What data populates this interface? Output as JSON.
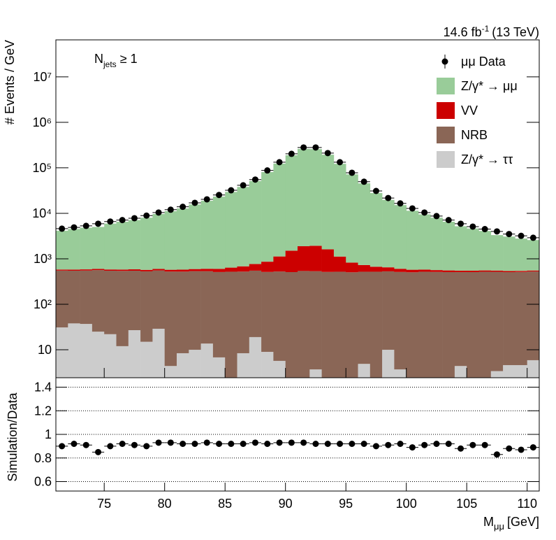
{
  "chart_data": [
    {
      "type": "stacked-histogram",
      "lumi": [
        "14.6 fb",
        "-1",
        "(13 TeV)"
      ],
      "annotation": [
        "N",
        "jets",
        "≥ 1"
      ],
      "ylabel": "# Events / GeV",
      "log_y": true,
      "bins": [
        71,
        72,
        73,
        74,
        75,
        76,
        77,
        78,
        79,
        80,
        81,
        82,
        83,
        84,
        85,
        86,
        87,
        88,
        89,
        90,
        91,
        92,
        93,
        94,
        95,
        96,
        97,
        98,
        99,
        100,
        101,
        102,
        103,
        104,
        105,
        106,
        107,
        108,
        109,
        110,
        111
      ],
      "xlim": [
        71,
        111
      ],
      "ylim": [
        2.43,
        65000000
      ],
      "yticks": [
        10,
        {
          "value": 100,
          "label": "10²"
        },
        {
          "value": 1000,
          "label": "10³"
        },
        {
          "value": 10000,
          "label": "10⁴"
        },
        {
          "value": 100000,
          "label": "10⁵"
        },
        {
          "value": 1000000,
          "label": "10⁶"
        },
        {
          "value": 10000000,
          "label": "10⁷"
        }
      ],
      "data": {
        "name": "μμ Data",
        "color": "#000000",
        "values": [
          4600,
          4900,
          5300,
          5900,
          6600,
          7100,
          7800,
          8900,
          10400,
          12000,
          13900,
          17000,
          20300,
          25300,
          32100,
          41300,
          55200,
          87600,
          133000,
          203000,
          280000,
          280000,
          211000,
          133000,
          78000,
          49500,
          31000,
          21700,
          16500,
          12800,
          10400,
          8700,
          7100,
          5900,
          5100,
          4500,
          4000,
          3500,
          3200,
          2900
        ]
      },
      "series": [
        {
          "name": "Z/γ* → μμ",
          "color": "#99cc99",
          "values": [
            3560,
            3930,
            4240,
            4420,
            5360,
            5950,
            6510,
            7440,
            9070,
            10590,
            12210,
            15050,
            18280,
            22670,
            28890,
            37310,
            50570,
            79730,
            122560,
            187280,
            258510,
            255670,
            192510,
            121240,
            70940,
            44810,
            27230,
            19100,
            14580,
            10820,
            8880,
            7440,
            5980,
            4640,
            4090,
            3540,
            2770,
            2540,
            2240,
            2030
          ]
        },
        {
          "name": "VV",
          "color": "#cc0000",
          "values": [
            30,
            32,
            34,
            35,
            36,
            38,
            40,
            42,
            45,
            50,
            55,
            60,
            70,
            90,
            120,
            160,
            220,
            350,
            600,
            1000,
            1350,
            1400,
            1100,
            600,
            320,
            210,
            150,
            120,
            90,
            70,
            60,
            50,
            45,
            40,
            38,
            35,
            33,
            30,
            28,
            27
          ]
        },
        {
          "name": "NRB",
          "color": "#8a6656",
          "values": [
            520,
            510,
            515,
            540,
            525,
            530,
            520,
            515,
            525,
            520,
            515,
            525,
            520,
            505,
            520,
            515,
            530,
            505,
            520,
            510,
            540,
            530,
            515,
            520,
            505,
            515,
            520,
            520,
            510,
            505,
            520,
            515,
            510,
            505,
            510,
            520,
            515,
            505,
            510,
            520
          ]
        },
        {
          "name": "Z/γ* → ττ",
          "color": "#cccccc",
          "values": [
            31,
            38,
            37,
            25,
            22,
            12,
            27,
            15,
            29,
            4.4,
            8.4,
            10,
            13.7,
            6.8,
            0,
            8.4,
            19,
            9,
            5.7,
            0,
            0,
            3.7,
            0,
            0,
            0,
            4.9,
            0,
            10,
            3.7,
            0,
            0,
            0,
            0,
            4.4,
            0,
            0,
            3.4,
            4.6,
            4.6,
            5.9
          ]
        }
      ]
    },
    {
      "type": "ratio",
      "ylabel": "Simulation/Data",
      "xlabel": [
        "M",
        "μμ",
        "[GeV]"
      ],
      "xlim": [
        71,
        111
      ],
      "xticks": [
        75,
        80,
        85,
        90,
        95,
        100,
        105,
        110
      ],
      "ylim": [
        0.52,
        1.48
      ],
      "yticks": [
        0.6,
        0.8,
        1,
        1.2,
        1.4
      ],
      "grid": true,
      "x": [
        71.5,
        72.5,
        73.5,
        74.5,
        75.5,
        76.5,
        77.5,
        78.5,
        79.5,
        80.5,
        81.5,
        82.5,
        83.5,
        84.5,
        85.5,
        86.5,
        87.5,
        88.5,
        89.5,
        90.5,
        91.5,
        92.5,
        93.5,
        94.5,
        95.5,
        96.5,
        97.5,
        98.5,
        99.5,
        100.5,
        101.5,
        102.5,
        103.5,
        104.5,
        105.5,
        106.5,
        107.5,
        108.5,
        109.5,
        110.5
      ],
      "values": [
        0.9,
        0.92,
        0.91,
        0.85,
        0.9,
        0.92,
        0.91,
        0.9,
        0.93,
        0.93,
        0.92,
        0.92,
        0.93,
        0.92,
        0.92,
        0.92,
        0.93,
        0.92,
        0.93,
        0.93,
        0.93,
        0.92,
        0.92,
        0.92,
        0.92,
        0.92,
        0.9,
        0.91,
        0.92,
        0.89,
        0.91,
        0.92,
        0.92,
        0.88,
        0.91,
        0.91,
        0.83,
        0.88,
        0.87,
        0.89
      ]
    }
  ]
}
